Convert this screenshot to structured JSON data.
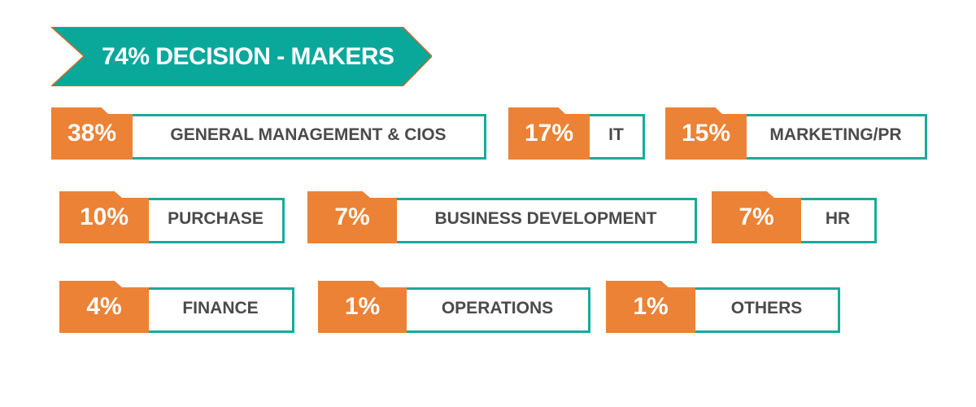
{
  "banner": {
    "title": "74% DECISION - MAKERS"
  },
  "colors": {
    "teal": "#0aa89b",
    "orange": "#ec8235",
    "text": "#4a4a4a"
  },
  "items": [
    {
      "percent": "38%",
      "label": "GENERAL MANAGEMENT & CIOS"
    },
    {
      "percent": "17%",
      "label": "IT"
    },
    {
      "percent": "15%",
      "label": "MARKETING/PR"
    },
    {
      "percent": "10%",
      "label": "PURCHASE"
    },
    {
      "percent": "7%",
      "label": "BUSINESS DEVELOPMENT"
    },
    {
      "percent": "7%",
      "label": "HR"
    },
    {
      "percent": "4%",
      "label": "FINANCE"
    },
    {
      "percent": "1%",
      "label": "OPERATIONS"
    },
    {
      "percent": "1%",
      "label": "OTHERS"
    }
  ]
}
